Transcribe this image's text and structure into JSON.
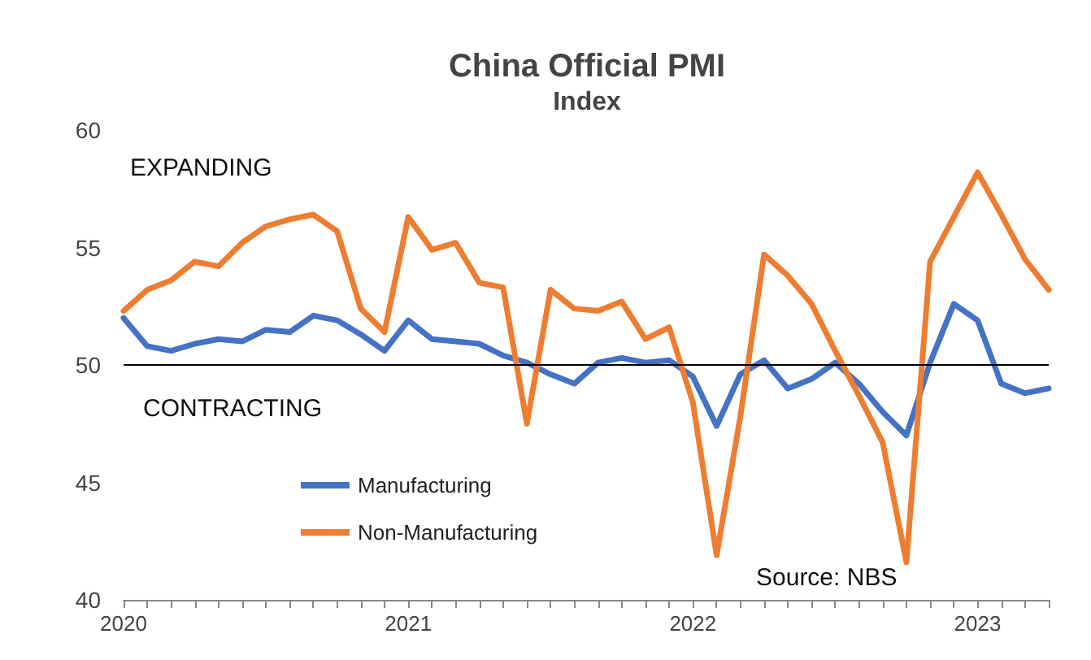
{
  "chart_data": {
    "type": "line",
    "title": "China Official PMI",
    "subtitle": "Index",
    "categories": [
      "2020",
      null,
      null,
      null,
      null,
      null,
      null,
      null,
      null,
      null,
      null,
      null,
      "2021",
      null,
      null,
      null,
      null,
      null,
      null,
      null,
      null,
      null,
      null,
      null,
      "2022",
      null,
      null,
      null,
      null,
      null,
      null,
      null,
      null,
      null,
      null,
      null,
      "2023",
      null,
      null,
      null
    ],
    "series": [
      {
        "name": "Manufacturing",
        "color": "#4472c4",
        "values": [
          52.0,
          50.8,
          50.6,
          50.9,
          51.1,
          51.0,
          51.5,
          51.4,
          52.1,
          51.9,
          51.3,
          50.6,
          51.9,
          51.1,
          51.0,
          50.9,
          50.4,
          50.1,
          49.6,
          49.2,
          50.1,
          50.3,
          50.1,
          50.2,
          49.5,
          47.4,
          49.6,
          50.2,
          49.0,
          49.4,
          50.1,
          49.2,
          48.0,
          47.0,
          50.1,
          52.6,
          51.9,
          49.2,
          48.8,
          49.0
        ]
      },
      {
        "name": "Non-Manufacturing",
        "color": "#ed7d31",
        "values": [
          52.3,
          53.2,
          53.6,
          54.4,
          54.2,
          55.2,
          55.9,
          56.2,
          56.4,
          55.7,
          52.4,
          51.4,
          56.3,
          54.9,
          55.2,
          53.5,
          53.3,
          47.5,
          53.2,
          52.4,
          52.3,
          52.7,
          51.1,
          51.6,
          48.4,
          41.9,
          47.8,
          54.7,
          53.8,
          52.6,
          50.6,
          48.7,
          46.7,
          41.6,
          54.4,
          56.3,
          58.2,
          56.4,
          54.5,
          53.2
        ]
      }
    ],
    "ylim": [
      40,
      60
    ],
    "yticks": [
      40,
      45,
      50,
      55,
      60
    ],
    "grid": false,
    "legend": "bottom left",
    "marker": "none",
    "line_style": "solid",
    "ref_lines": [
      {
        "axis": "y",
        "value": 50,
        "color": "#000000"
      }
    ],
    "annotations": [
      "EXPANDING",
      "CONTRACTING",
      "Source: NBS"
    ]
  }
}
